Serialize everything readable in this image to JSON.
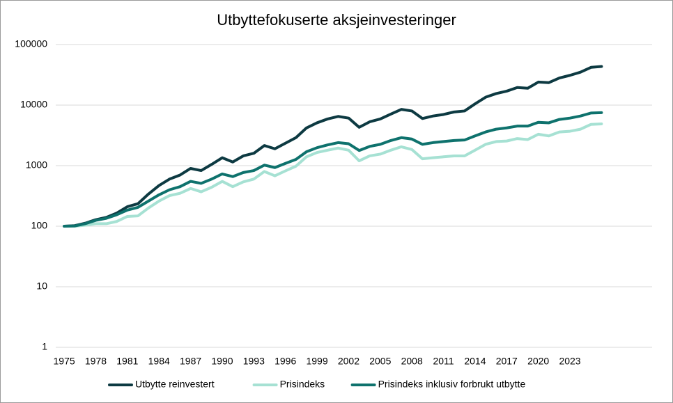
{
  "chart_data": {
    "type": "line",
    "title": "Utbyttefokuserte aksjeinvesteringer",
    "x": [
      1975,
      1976,
      1977,
      1978,
      1979,
      1980,
      1981,
      1982,
      1983,
      1984,
      1985,
      1986,
      1987,
      1988,
      1989,
      1990,
      1991,
      1992,
      1993,
      1994,
      1995,
      1996,
      1997,
      1998,
      1999,
      2000,
      2001,
      2002,
      2003,
      2004,
      2005,
      2006,
      2007,
      2008,
      2009,
      2010,
      2011,
      2012,
      2013,
      2014,
      2015,
      2016,
      2017,
      2018,
      2019,
      2020,
      2021,
      2022,
      2023,
      2024,
      2025,
      2026
    ],
    "series": [
      {
        "name": "Utbytte reinvestert",
        "color": "#0d3a42",
        "values": [
          100,
          102,
          112,
          128,
          140,
          165,
          210,
          235,
          340,
          470,
          600,
          700,
          900,
          830,
          1050,
          1350,
          1150,
          1450,
          1600,
          2150,
          1900,
          2350,
          2900,
          4200,
          5100,
          5900,
          6500,
          6100,
          4300,
          5300,
          5900,
          7100,
          8500,
          8000,
          6000,
          6600,
          7000,
          7700,
          8000,
          10500,
          13500,
          15500,
          17000,
          19500,
          19000,
          24000,
          23500,
          28000,
          31000,
          35000,
          42000,
          43500
        ]
      },
      {
        "name": "Prisindeks",
        "color": "#a6e1d3",
        "values": [
          100,
          100,
          104,
          110,
          110,
          120,
          145,
          148,
          200,
          260,
          320,
          350,
          420,
          370,
          440,
          550,
          450,
          540,
          600,
          800,
          680,
          820,
          980,
          1400,
          1650,
          1800,
          1950,
          1800,
          1200,
          1450,
          1550,
          1800,
          2050,
          1850,
          1300,
          1350,
          1400,
          1450,
          1450,
          1800,
          2250,
          2500,
          2550,
          2800,
          2700,
          3300,
          3100,
          3600,
          3700,
          4000,
          4800,
          4900
        ]
      },
      {
        "name": "Prisindeks inklusiv forbrukt utbytte",
        "color": "#0e726d",
        "values": [
          100,
          101,
          110,
          125,
          135,
          155,
          185,
          205,
          260,
          330,
          400,
          450,
          550,
          510,
          600,
          730,
          660,
          770,
          830,
          1020,
          930,
          1090,
          1270,
          1700,
          1980,
          2200,
          2400,
          2300,
          1780,
          2080,
          2250,
          2600,
          2900,
          2750,
          2250,
          2400,
          2500,
          2600,
          2650,
          3100,
          3600,
          4000,
          4200,
          4500,
          4500,
          5200,
          5100,
          5800,
          6100,
          6600,
          7400,
          7500
        ]
      }
    ],
    "xlim": [
      1974.2,
      2030.8
    ],
    "xticks": [
      1975,
      1978,
      1981,
      1984,
      1987,
      1990,
      1993,
      1996,
      1999,
      2002,
      2005,
      2008,
      2011,
      2014,
      2017,
      2020,
      2023
    ],
    "ylim": [
      1,
      100000
    ],
    "yticks": [
      1,
      10,
      100,
      1000,
      10000,
      100000
    ],
    "log_y": true,
    "grid": true,
    "legend": "bottom"
  }
}
